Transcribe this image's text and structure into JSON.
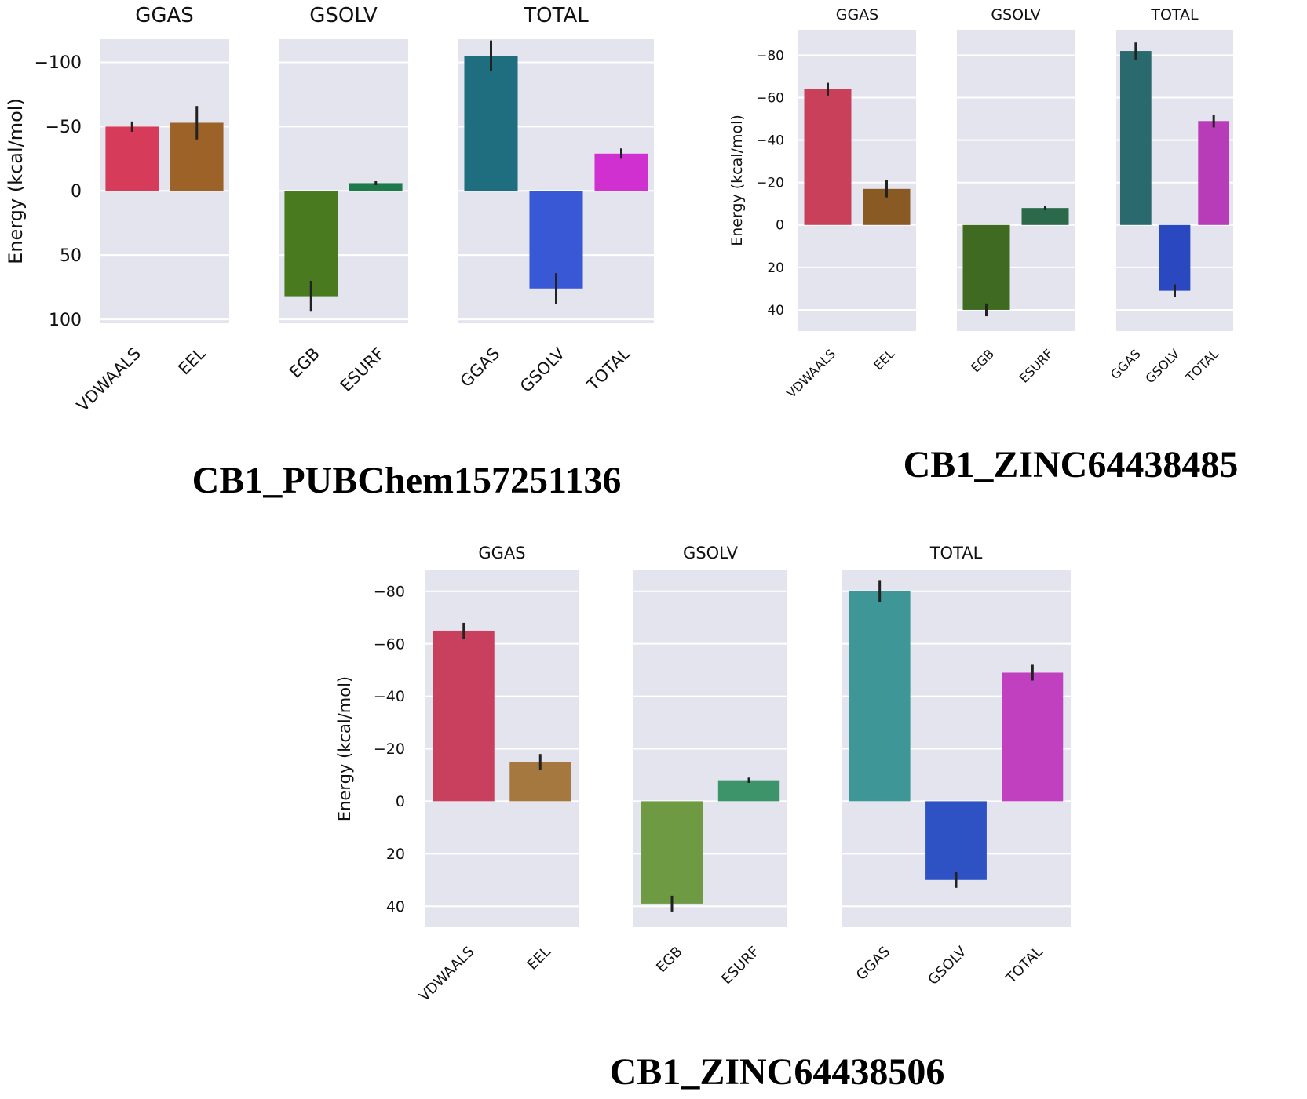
{
  "chart_data": [
    {
      "type": "bar",
      "name": "CB1_PUBChem157251136",
      "caption": "CB1_PUBChem157251136",
      "ylabel": "Energy (kcal/mol)",
      "yaxis_inverted": true,
      "ylim": [
        -118,
        103
      ],
      "yticks": [
        {
          "value": -100,
          "label": "−100"
        },
        {
          "value": -50,
          "label": "−50"
        },
        {
          "value": 0,
          "label": "0"
        },
        {
          "value": 50,
          "label": "50"
        },
        {
          "value": 100,
          "label": "100"
        }
      ],
      "facets": [
        {
          "title": "GGAS",
          "bars": [
            {
              "category": "VDWAALS",
              "value": -50,
              "error": 4,
              "color": "#d63b5a"
            },
            {
              "category": "EEL",
              "value": -53,
              "error": 13,
              "color": "#9c6228"
            }
          ]
        },
        {
          "title": "GSOLV",
          "bars": [
            {
              "category": "EGB",
              "value": 82,
              "error": 12,
              "color": "#4a7a1f"
            },
            {
              "category": "ESURF",
              "value": -6,
              "error": 1.5,
              "color": "#1e7a4a"
            }
          ]
        },
        {
          "title": "TOTAL",
          "bars": [
            {
              "category": "GGAS",
              "value": -105,
              "error": 12,
              "color": "#1f6e80"
            },
            {
              "category": "GSOLV",
              "value": 76,
              "error": 12,
              "color": "#3858d6"
            },
            {
              "category": "TOTAL",
              "value": -29,
              "error": 4,
              "color": "#d030d0"
            }
          ]
        }
      ]
    },
    {
      "type": "bar",
      "name": "CB1_ZINC64438485",
      "caption": "CB1_ZINC64438485",
      "ylabel": "Energy (kcal/mol)",
      "yaxis_inverted": true,
      "ylim": [
        -92,
        50
      ],
      "yticks": [
        {
          "value": -80,
          "label": "−80"
        },
        {
          "value": -60,
          "label": "−60"
        },
        {
          "value": -40,
          "label": "−40"
        },
        {
          "value": -20,
          "label": "−20"
        },
        {
          "value": 0,
          "label": "0"
        },
        {
          "value": 20,
          "label": "20"
        },
        {
          "value": 40,
          "label": "40"
        }
      ],
      "facets": [
        {
          "title": "GGAS",
          "bars": [
            {
              "category": "VDWAALS",
              "value": -64,
              "error": 3,
              "color": "#c8405a"
            },
            {
              "category": "EEL",
              "value": -17,
              "error": 4,
              "color": "#8a5a24"
            }
          ]
        },
        {
          "title": "GSOLV",
          "bars": [
            {
              "category": "EGB",
              "value": 40,
              "error": 3,
              "color": "#3e6a22"
            },
            {
              "category": "ESURF",
              "value": -8,
              "error": 1,
              "color": "#2a6a4a"
            }
          ]
        },
        {
          "title": "TOTAL",
          "bars": [
            {
              "category": "GGAS",
              "value": -82,
              "error": 4,
              "color": "#2a6a6e"
            },
            {
              "category": "GSOLV",
              "value": 31,
              "error": 3,
              "color": "#2a48c0"
            },
            {
              "category": "TOTAL",
              "value": -49,
              "error": 3,
              "color": "#b83cb8"
            }
          ]
        }
      ]
    },
    {
      "type": "bar",
      "name": "CB1_ZINC64438506",
      "caption": "CB1_ZINC64438506",
      "ylabel": "Energy (kcal/mol)",
      "yaxis_inverted": true,
      "ylim": [
        -88,
        48
      ],
      "yticks": [
        {
          "value": -80,
          "label": "−80"
        },
        {
          "value": -60,
          "label": "−60"
        },
        {
          "value": -40,
          "label": "−40"
        },
        {
          "value": -20,
          "label": "−20"
        },
        {
          "value": 0,
          "label": "0"
        },
        {
          "value": 20,
          "label": "20"
        },
        {
          "value": 40,
          "label": "40"
        }
      ],
      "facets": [
        {
          "title": "GGAS",
          "bars": [
            {
              "category": "VDWAALS",
              "value": -65,
              "error": 3,
              "color": "#c8405e"
            },
            {
              "category": "EEL",
              "value": -15,
              "error": 3,
              "color": "#a57840"
            }
          ]
        },
        {
          "title": "GSOLV",
          "bars": [
            {
              "category": "EGB",
              "value": 39,
              "error": 3,
              "color": "#6e9a44"
            },
            {
              "category": "ESURF",
              "value": -8,
              "error": 1,
              "color": "#3e946a"
            }
          ]
        },
        {
          "title": "TOTAL",
          "bars": [
            {
              "category": "GGAS",
              "value": -80,
              "error": 4,
              "color": "#3e9696"
            },
            {
              "category": "GSOLV",
              "value": 30,
              "error": 3,
              "color": "#2e52c4"
            },
            {
              "category": "TOTAL",
              "value": -49,
              "error": 3,
              "color": "#c040c0"
            }
          ]
        }
      ]
    }
  ]
}
